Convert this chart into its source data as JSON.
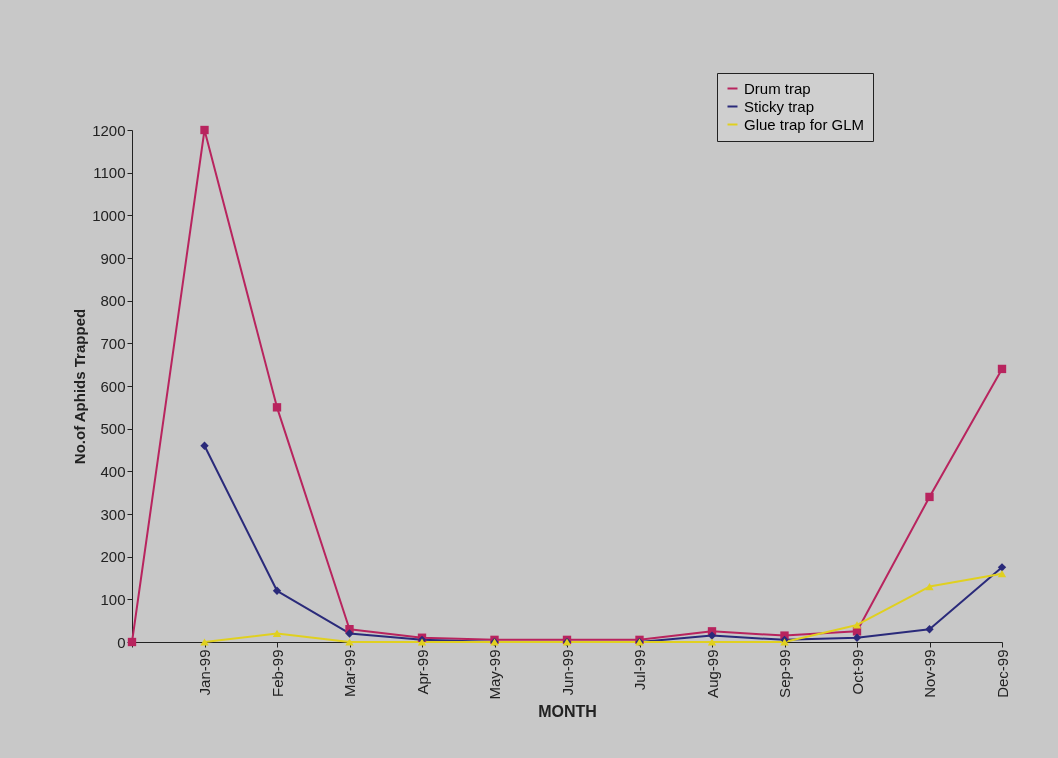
{
  "chart_data": {
    "type": "line",
    "xlabel": "MONTH",
    "ylabel": "No.of Aphids Trapped",
    "categories": [
      null,
      "Jan-99",
      "Feb-99",
      "Mar-99",
      "Apr-99",
      "May-99",
      "Jun-99",
      "Jul-99",
      "Aug-99",
      "Sep-99",
      "Oct-99",
      "Nov-99",
      "Dec-99"
    ],
    "series": [
      {
        "name": "Drum trap",
        "color": "#b8245e",
        "marker": "square",
        "values": [
          0,
          1200,
          550,
          30,
          10,
          5,
          5,
          5,
          25,
          15,
          25,
          340,
          640
        ]
      },
      {
        "name": "Sticky trap",
        "color": "#2a2a7a",
        "marker": "diamond",
        "values": [
          null,
          460,
          120,
          20,
          5,
          0,
          0,
          0,
          15,
          5,
          10,
          30,
          175
        ]
      },
      {
        "name": "Glue trap for GLM",
        "color": "#e0d020",
        "marker": "triangle",
        "values": [
          null,
          0,
          20,
          0,
          0,
          0,
          0,
          0,
          0,
          0,
          40,
          130,
          160
        ]
      }
    ],
    "ylim": [
      0,
      1200
    ],
    "yticks": [
      0,
      100,
      200,
      300,
      400,
      500,
      600,
      700,
      800,
      900,
      1000,
      1100,
      1200
    ],
    "grid": false,
    "legend": "top right"
  }
}
